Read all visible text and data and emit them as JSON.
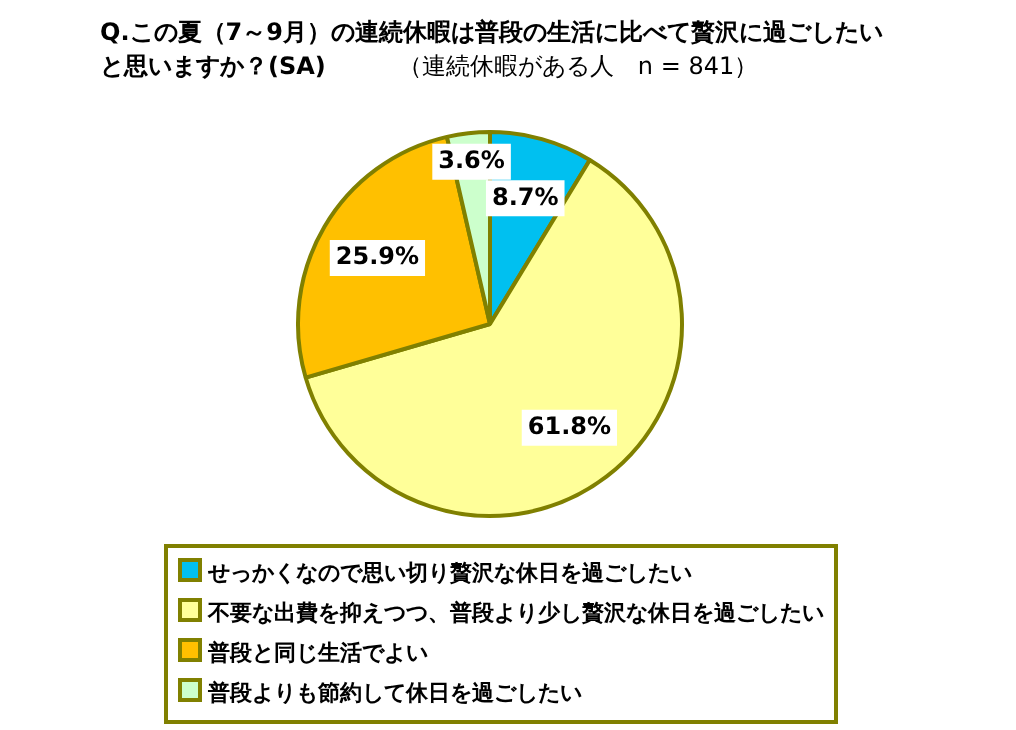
{
  "chart_data": {
    "type": "pie",
    "title": "Q.この夏（7～9月）の連続休暇は普段の生活に比べて贅沢に過ごしたいと思いますか？(SA)",
    "subtitle": "（連続休暇がある人　n = 841）",
    "categories": [
      "せっかくなので思い切り贅沢な休日を過ごしたい",
      "不要な出費を抑えつつ、普段より少し贅沢な休日を過ごしたい",
      "普段と同じ生活でよい",
      "普段よりも節約して休日を過ごしたい"
    ],
    "values": [
      8.7,
      61.8,
      25.9,
      3.6
    ],
    "value_labels": [
      "8.7%",
      "61.8%",
      "25.9%",
      "3.6%"
    ],
    "colors": [
      "#00c0f0",
      "#ffff99",
      "#ffc000",
      "#ccffcc"
    ],
    "legend": "bottom"
  }
}
